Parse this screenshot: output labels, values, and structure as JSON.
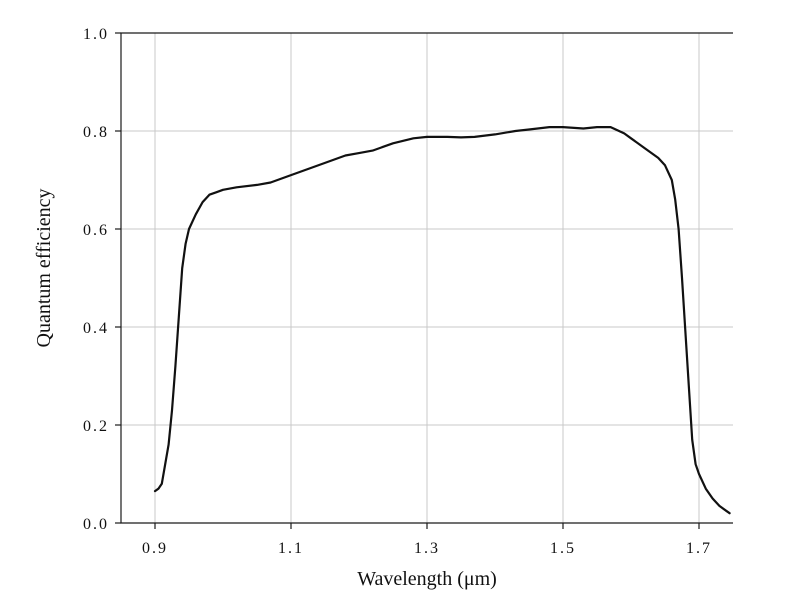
{
  "chart_data": {
    "type": "line",
    "title": "",
    "xlabel": "Wavelength (μm)",
    "ylabel": "Quantum efficiency",
    "xlim": [
      0.85,
      1.75
    ],
    "ylim": [
      0.0,
      1.0
    ],
    "grid": true,
    "x_ticks": [
      0.9,
      1.1,
      1.3,
      1.5,
      1.7
    ],
    "x_tick_labels": [
      "0.9",
      "1.1",
      "1.3",
      "1.5",
      "1.7"
    ],
    "y_ticks": [
      0.0,
      0.2,
      0.4,
      0.6,
      0.8,
      1.0
    ],
    "y_tick_labels": [
      "0.0",
      "0.2",
      "0.4",
      "0.6",
      "0.8",
      "1.0"
    ],
    "series": [
      {
        "color": "#111111",
        "x": [
          0.9,
          0.905,
          0.91,
          0.915,
          0.92,
          0.925,
          0.93,
          0.935,
          0.94,
          0.945,
          0.95,
          0.96,
          0.97,
          0.98,
          0.99,
          1.0,
          1.02,
          1.05,
          1.07,
          1.1,
          1.15,
          1.18,
          1.2,
          1.22,
          1.25,
          1.28,
          1.3,
          1.33,
          1.35,
          1.37,
          1.4,
          1.43,
          1.45,
          1.48,
          1.5,
          1.53,
          1.55,
          1.57,
          1.59,
          1.6,
          1.62,
          1.64,
          1.65,
          1.66,
          1.665,
          1.67,
          1.675,
          1.68,
          1.685,
          1.69,
          1.695,
          1.7,
          1.71,
          1.72,
          1.73,
          1.74,
          1.745
        ],
        "y": [
          0.065,
          0.07,
          0.08,
          0.12,
          0.16,
          0.23,
          0.32,
          0.42,
          0.52,
          0.57,
          0.6,
          0.63,
          0.655,
          0.67,
          0.675,
          0.68,
          0.685,
          0.69,
          0.695,
          0.71,
          0.735,
          0.75,
          0.755,
          0.76,
          0.775,
          0.785,
          0.788,
          0.788,
          0.787,
          0.788,
          0.793,
          0.8,
          0.803,
          0.808,
          0.808,
          0.805,
          0.808,
          0.808,
          0.795,
          0.785,
          0.765,
          0.745,
          0.73,
          0.7,
          0.66,
          0.6,
          0.5,
          0.39,
          0.28,
          0.17,
          0.12,
          0.1,
          0.07,
          0.05,
          0.035,
          0.025,
          0.02
        ]
      }
    ]
  }
}
